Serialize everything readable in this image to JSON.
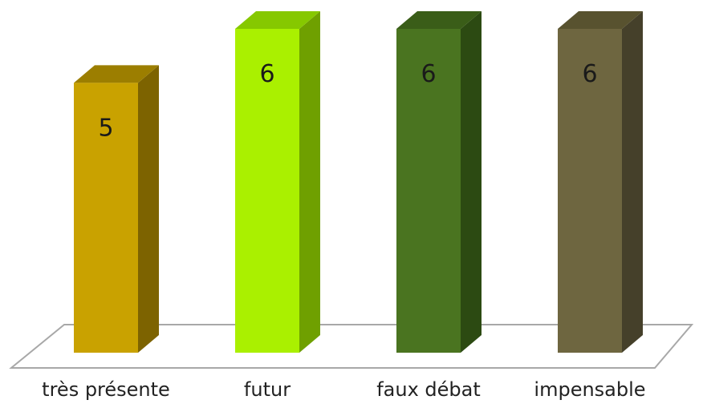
{
  "chart_data": {
    "type": "bar",
    "style": "3d-column",
    "categories": [
      "très présente",
      "futur",
      "faux débat",
      "impensable"
    ],
    "values": [
      5,
      6,
      6,
      6
    ],
    "colors": [
      "#c9a200",
      "#aaf000",
      "#4a7420",
      "#6e6640"
    ],
    "side_colors": [
      "#7d6300",
      "#6fa000",
      "#2c4a12",
      "#45402a"
    ],
    "top_colors": [
      "#9c7e00",
      "#86c800",
      "#3a5d18",
      "#58522f"
    ],
    "ylim": [
      0,
      6
    ],
    "grid": false,
    "legend": "none",
    "title": "",
    "xlabel": "",
    "ylabel": ""
  }
}
